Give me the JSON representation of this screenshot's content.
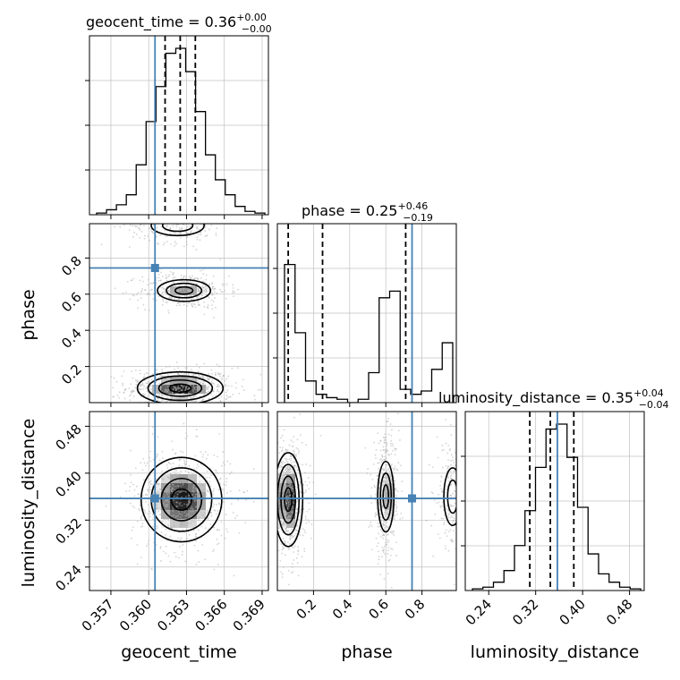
{
  "chart_data": {
    "type": "corner",
    "parameters": [
      "geocent_time",
      "phase",
      "luminosity_distance"
    ],
    "truth": {
      "geocent_time": 0.3605,
      "phase": 0.745,
      "luminosity_distance": 0.357
    },
    "colors": {
      "truth": "#4682b4",
      "hist": "#000000",
      "grid": "#c0c0c0",
      "points": "#b0b0b0"
    },
    "titles": {
      "geocent_time": {
        "prefix": "geocent_time = 0.36",
        "sup": "+0.00",
        "sub": "−0.00"
      },
      "phase": {
        "prefix": "phase = 0.25",
        "sup": "+0.46",
        "sub": "−0.19"
      },
      "luminosity_distance": {
        "prefix": "luminosity_distance = 0.35",
        "sup": "+0.04",
        "sub": "−0.04"
      }
    },
    "ranges": {
      "geocent_time": [
        0.3553,
        0.3695
      ],
      "phase": [
        0.0,
        0.99
      ],
      "luminosity_distance": [
        0.2,
        0.505
      ]
    },
    "ticks": {
      "geocent_time": [
        0.357,
        0.36,
        0.363,
        0.366,
        0.369
      ],
      "phase": [
        0.2,
        0.4,
        0.6,
        0.8
      ],
      "luminosity_distance": [
        0.24,
        0.32,
        0.4,
        0.48
      ]
    },
    "tick_labels": {
      "geocent_time": [
        "0.357",
        "0.360",
        "0.363",
        "0.366",
        "0.369"
      ],
      "phase_x": [
        "0.2",
        "0.4",
        "0.6",
        "0.8"
      ],
      "phase_y": [
        "0.2",
        "0.4",
        "0.6",
        "0.8"
      ],
      "luminosity_distance_x": [
        "0.24",
        "0.32",
        "0.40",
        "0.48"
      ],
      "luminosity_distance_y": [
        "0.24",
        "0.32",
        "0.40",
        "0.48"
      ]
    },
    "axis_labels": {
      "x": [
        "geocent_time",
        "phase",
        "luminosity_distance"
      ],
      "y": [
        "phase",
        "luminosity_distance"
      ]
    },
    "quantiles": {
      "geocent_time": [
        0.3613,
        0.3625,
        0.3637
      ],
      "phase": [
        0.06,
        0.25,
        0.71
      ],
      "luminosity_distance": [
        0.31,
        0.345,
        0.385
      ]
    },
    "histograms": {
      "geocent_time": [
        0.01,
        0.03,
        0.06,
        0.12,
        0.3,
        0.56,
        0.77,
        0.97,
        1.0,
        0.86,
        0.62,
        0.36,
        0.21,
        0.12,
        0.05,
        0.02,
        0.01
      ],
      "phase": [
        0.83,
        0.42,
        0.13,
        0.05,
        0.03,
        0.02,
        0.0,
        0.02,
        0.18,
        0.63,
        0.67,
        0.08,
        0.05,
        0.07,
        0.2,
        0.36
      ],
      "luminosity_distance": [
        0.01,
        0.02,
        0.05,
        0.12,
        0.27,
        0.48,
        0.74,
        0.97,
        1.0,
        0.8,
        0.5,
        0.22,
        0.1,
        0.05,
        0.02,
        0.01
      ]
    },
    "modes": {
      "geocent_time_phase": [
        {
          "x": 0.3625,
          "y": 0.08,
          "sx": 0.0017,
          "sy": 0.045,
          "w": 1.0
        },
        {
          "x": 0.3628,
          "y": 0.62,
          "sx": 0.0014,
          "sy": 0.04,
          "w": 0.65
        },
        {
          "x": 0.3623,
          "y": 0.98,
          "sx": 0.0015,
          "sy": 0.04,
          "w": 0.35
        }
      ],
      "phase_luminosity_distance": [
        {
          "x": 0.06,
          "y": 0.355,
          "sx": 0.04,
          "sy": 0.04,
          "w": 1.0
        },
        {
          "x": 0.6,
          "y": 0.36,
          "sx": 0.03,
          "sy": 0.04,
          "w": 0.7
        },
        {
          "x": 0.97,
          "y": 0.36,
          "sx": 0.035,
          "sy": 0.035,
          "w": 0.35
        }
      ],
      "geocent_time_luminosity_distance": [
        {
          "x": 0.3626,
          "y": 0.355,
          "sx": 0.0016,
          "sy": 0.036,
          "w": 1.0
        }
      ]
    }
  }
}
